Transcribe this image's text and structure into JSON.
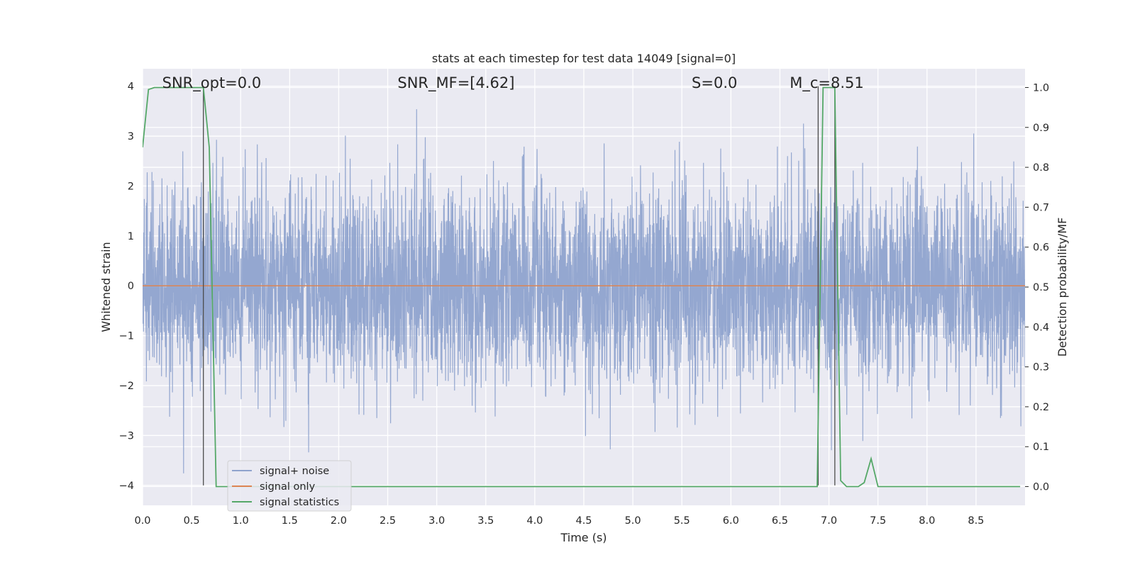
{
  "chart_data": {
    "type": "line",
    "title": "stats at each timestep for test data 14049 [signal=0]",
    "xlabel": "Time (s)",
    "ylabel": "Whitened strain",
    "ylabel_right": "Detection probability/MF",
    "xlim": [
      0.0,
      9.0
    ],
    "ylim": [
      -4.4,
      4.35
    ],
    "ylim_right": [
      -0.047,
      1.047
    ],
    "x_ticks": [
      "0.0",
      "0.5",
      "1.0",
      "1.5",
      "2.0",
      "2.5",
      "3.0",
      "3.5",
      "4.0",
      "4.5",
      "5.0",
      "5.5",
      "6.0",
      "6.5",
      "7.0",
      "7.5",
      "8.0",
      "8.5"
    ],
    "y_ticks": [
      "−4",
      "−3",
      "−2",
      "−1",
      "0",
      "1",
      "2",
      "3",
      "4"
    ],
    "y_ticks_right": [
      "0.0",
      "0.1",
      "0.2",
      "0.3",
      "0.4",
      "0.5",
      "0.6",
      "0.7",
      "0.8",
      "0.9",
      "1.0"
    ],
    "grid": true,
    "legend_position": "lower-left",
    "annotations": [
      {
        "text": "SNR_opt=0.0",
        "x": 0.2
      },
      {
        "text": "SNR_MF=[4.62]",
        "x": 2.6
      },
      {
        "text": "S=0.0",
        "x": 5.6
      },
      {
        "text": "M_c=8.51",
        "x": 6.6
      }
    ],
    "series": [
      {
        "name": "signal+ noise",
        "color": "#8fa3cd",
        "noise": {
          "sample_rate": 512,
          "std": 0.78,
          "seed": 14049
        }
      },
      {
        "name": "signal only",
        "color": "#dd8452",
        "x": [
          0.0,
          9.0
        ],
        "y": [
          0.0,
          0.0
        ]
      },
      {
        "name": "signal statistics",
        "color": "#55a868",
        "axis": "right",
        "x": [
          0.0,
          0.06,
          0.12,
          0.18,
          0.24,
          0.3,
          0.36,
          0.42,
          0.48,
          0.54,
          0.6,
          0.62,
          0.68,
          0.75,
          0.82,
          1.0,
          2.0,
          3.0,
          4.0,
          5.0,
          6.0,
          6.5,
          6.8,
          6.88,
          6.94,
          7.0,
          7.06,
          7.12,
          7.18,
          7.24,
          7.3,
          7.36,
          7.43,
          7.5,
          7.56,
          8.0,
          8.5,
          8.95
        ],
        "y": [
          0.85,
          0.995,
          1.0,
          1.0,
          1.0,
          1.0,
          1.0,
          1.0,
          1.0,
          1.0,
          1.0,
          1.0,
          0.85,
          0.0,
          0.0,
          0.0,
          0.0,
          0.0,
          0.0,
          0.0,
          0.0,
          0.0,
          0.0,
          0.0,
          1.0,
          1.0,
          1.0,
          0.015,
          0.0,
          0.0,
          0.0,
          0.01,
          0.07,
          0.0,
          0.0,
          0.0,
          0.0,
          0.0
        ]
      }
    ],
    "vertical_lines": [
      {
        "x": 0.62,
        "y_from": 4.0,
        "y_to": -4.0,
        "color": "#4c4c4c"
      },
      {
        "x": 6.89,
        "y_from": 4.0,
        "y_to": -4.0,
        "color": "#4c4c4c"
      },
      {
        "x": 7.06,
        "y_from": 4.0,
        "y_to": -4.0,
        "color": "#4c4c4c"
      }
    ]
  }
}
